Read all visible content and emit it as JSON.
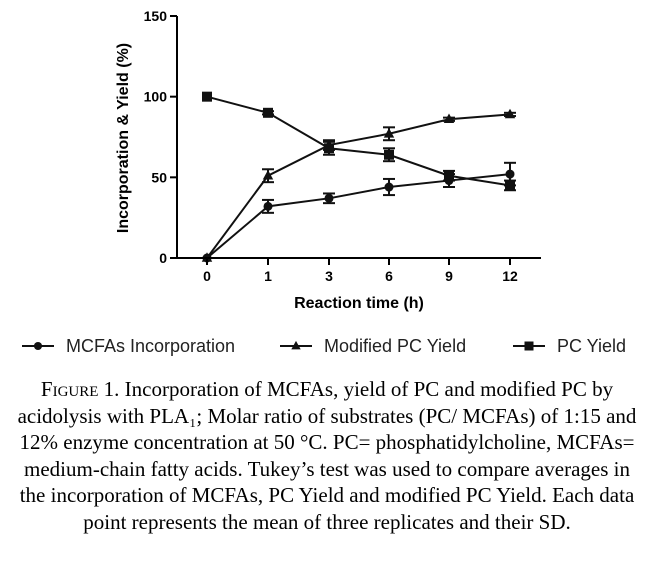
{
  "chart_data": {
    "type": "line",
    "xlabel": "Reaction time (h)",
    "ylabel": "Incorporation & Yield (%)",
    "categories": [
      "0",
      "1",
      "3",
      "6",
      "9",
      "12"
    ],
    "yticks": [
      "0",
      "50",
      "100",
      "150"
    ],
    "ylim": [
      0,
      150
    ],
    "legend_position": "bottom",
    "grid": false,
    "series": [
      {
        "name": "MCFAs Incorporation",
        "marker": "circle",
        "values": [
          0,
          32,
          37,
          44,
          48,
          52
        ],
        "error": [
          0,
          4,
          3,
          5,
          4,
          7
        ]
      },
      {
        "name": "Modified PC Yield",
        "marker": "triangle",
        "values": [
          0,
          51,
          70,
          77,
          86,
          89
        ],
        "error": [
          0,
          4,
          3,
          4,
          1,
          1
        ]
      },
      {
        "name": "PC Yield",
        "marker": "square",
        "values": [
          100,
          90,
          68,
          64,
          51,
          45
        ],
        "error": [
          0,
          1,
          4,
          4,
          3,
          3
        ]
      }
    ]
  },
  "caption": {
    "label": "Figure 1.",
    "text": " Incorporation of MCFAs, yield of PC and modified PC by acidolysis with PLA₁; Molar ratio of substrates (PC/ MCFAs) of 1:15 and 12% enzyme concentration at 50 °C. PC= phosphatidylcholine, MCFAs= medium-chain fatty acids. Tukey’s test was used to compare averages in the incorporation of MCFAs, PC Yield and modified PC Yield. Each data point represents the mean of three replicates and their SD."
  }
}
